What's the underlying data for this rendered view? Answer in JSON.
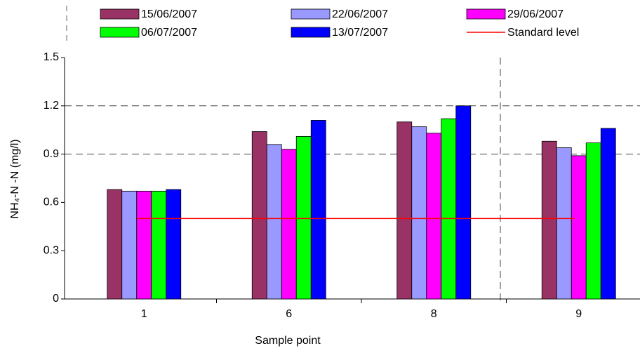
{
  "chart_data": {
    "type": "bar",
    "y_label": "NH₄-N -N (mg/l)",
    "x_label": "Sample point",
    "categories": [
      "1",
      "6",
      "8",
      "9"
    ],
    "series": [
      {
        "name": "15/06/2007",
        "color": "#993366",
        "values": [
          0.68,
          1.04,
          1.1,
          0.98
        ]
      },
      {
        "name": "22/06/2007",
        "color": "#9999ff",
        "values": [
          0.67,
          0.96,
          1.07,
          0.94
        ]
      },
      {
        "name": "29/06/2007",
        "color": "#ff00ff",
        "values": [
          0.67,
          0.93,
          1.03,
          0.89
        ]
      },
      {
        "name": "06/07/2007",
        "color": "#00ff00",
        "values": [
          0.67,
          1.01,
          1.12,
          0.97
        ]
      },
      {
        "name": "13/07/2007",
        "color": "#0000ff",
        "values": [
          0.68,
          1.11,
          1.2,
          1.06
        ]
      },
      {
        "name": "Standard level",
        "color": "#ff0000",
        "type": "line",
        "values": [
          0.5,
          0.5,
          0.5,
          0.5
        ]
      }
    ],
    "ylim": [
      0,
      1.5
    ],
    "yticks": [
      0,
      0.3,
      0.6,
      0.9,
      1.2,
      1.5
    ],
    "grid_y": [
      0.9,
      1.2
    ]
  }
}
